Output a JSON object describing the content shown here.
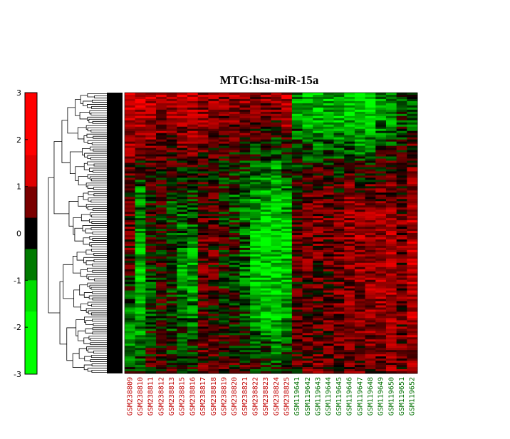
{
  "chart_data": {
    "type": "heatmap",
    "title": "MTG:hsa-miR-15a",
    "colorbar": {
      "range": [
        -3,
        3
      ],
      "ticks": [
        "3",
        "2",
        "1",
        "0",
        "-1",
        "-2",
        "-3"
      ],
      "colors": [
        "#ff0000",
        "#ff0000",
        "#e00000",
        "#7a0000",
        "#000000",
        "#007a00",
        "#00dd00",
        "#00ff00",
        "#00ff00"
      ]
    },
    "samples": [
      {
        "label": "GSM238809",
        "group": "red"
      },
      {
        "label": "GSM238810",
        "group": "red"
      },
      {
        "label": "GSM238811",
        "group": "red"
      },
      {
        "label": "GSM238812",
        "group": "red"
      },
      {
        "label": "GSM238813",
        "group": "red"
      },
      {
        "label": "GSM238815",
        "group": "red"
      },
      {
        "label": "GSM238816",
        "group": "red"
      },
      {
        "label": "GSM238817",
        "group": "red"
      },
      {
        "label": "GSM238818",
        "group": "red"
      },
      {
        "label": "GSM238819",
        "group": "red"
      },
      {
        "label": "GSM238820",
        "group": "red"
      },
      {
        "label": "GSM238821",
        "group": "red"
      },
      {
        "label": "GSM238822",
        "group": "red"
      },
      {
        "label": "GSM238823",
        "group": "red"
      },
      {
        "label": "GSM238824",
        "group": "red"
      },
      {
        "label": "GSM238825",
        "group": "red"
      },
      {
        "label": "GSM119641",
        "group": "green"
      },
      {
        "label": "GSM119642",
        "group": "green"
      },
      {
        "label": "GSM119643",
        "group": "green"
      },
      {
        "label": "GSM119644",
        "group": "green"
      },
      {
        "label": "GSM119645",
        "group": "green"
      },
      {
        "label": "GSM119646",
        "group": "green"
      },
      {
        "label": "GSM119647",
        "group": "green"
      },
      {
        "label": "GSM119648",
        "group": "green"
      },
      {
        "label": "GSM119649",
        "group": "green"
      },
      {
        "label": "GSM119650",
        "group": "green"
      },
      {
        "label": "GSM119651",
        "group": "green"
      },
      {
        "label": "GSM119652",
        "group": "green"
      }
    ],
    "label_colors": {
      "red": "#c00000",
      "green": "#007000"
    },
    "column_profiles": [
      [
        2.2,
        2.0,
        1.5,
        0.8,
        0.5,
        1.0,
        0.8,
        0.2,
        -0.8,
        -1.3,
        -1.5,
        -0.5
      ],
      [
        2.2,
        2.0,
        1.0,
        0.2,
        -1.5,
        -1.2,
        -1.6,
        -2.0,
        -1.5,
        -1.6,
        -1.0,
        -0.5
      ],
      [
        2.0,
        1.8,
        1.2,
        0.5,
        0.0,
        0.3,
        0.2,
        -0.2,
        -0.5,
        -0.3,
        0.2,
        0.4
      ],
      [
        1.8,
        1.5,
        1.0,
        0.3,
        0.5,
        0.2,
        0.2,
        0.0,
        0.3,
        0.0,
        0.4,
        0.5
      ],
      [
        1.8,
        1.5,
        0.8,
        0.0,
        -0.5,
        -0.3,
        -0.5,
        -0.8,
        -0.4,
        -0.6,
        -0.1,
        0.3
      ],
      [
        2.0,
        1.7,
        1.0,
        0.2,
        -0.5,
        -1.0,
        -1.2,
        -1.5,
        -1.2,
        -0.8,
        -0.3,
        0.0
      ],
      [
        1.8,
        1.5,
        1.2,
        0.4,
        -0.3,
        -0.5,
        -1.5,
        -1.8,
        -1.5,
        -1.0,
        -0.5,
        0.0
      ],
      [
        1.5,
        1.5,
        1.0,
        0.5,
        0.5,
        0.8,
        1.0,
        0.8,
        0.5,
        0.5,
        0.8,
        0.8
      ],
      [
        1.5,
        1.5,
        0.8,
        0.5,
        0.5,
        1.0,
        0.8,
        0.6,
        0.3,
        0.5,
        0.8,
        0.6
      ],
      [
        1.5,
        1.2,
        0.5,
        0.0,
        -0.3,
        0.0,
        0.2,
        0.0,
        -0.2,
        0.2,
        0.5,
        0.5
      ],
      [
        1.5,
        1.2,
        0.5,
        -0.2,
        -0.8,
        -0.3,
        0.0,
        -0.3,
        -0.2,
        0.0,
        0.3,
        0.6
      ],
      [
        1.5,
        1.0,
        0.3,
        -0.5,
        -1.0,
        -1.0,
        -0.8,
        -1.2,
        -0.8,
        -0.5,
        0.0,
        0.5
      ],
      [
        1.5,
        1.0,
        0.0,
        -0.8,
        -1.5,
        -2.0,
        -2.2,
        -2.2,
        -2.0,
        -1.5,
        -0.5,
        0.2
      ],
      [
        1.5,
        0.8,
        -0.3,
        -1.0,
        -1.8,
        -2.2,
        -2.3,
        -2.3,
        -2.2,
        -1.8,
        -0.8,
        0.0
      ],
      [
        1.5,
        0.8,
        -0.5,
        -1.5,
        -2.0,
        -2.3,
        -2.3,
        -2.3,
        -2.2,
        -2.0,
        -1.0,
        -0.3
      ],
      [
        2.0,
        1.8,
        0.5,
        -0.5,
        -1.5,
        -2.0,
        -2.0,
        -2.0,
        -1.8,
        -1.5,
        -0.8,
        0.0
      ],
      [
        -1.5,
        -1.5,
        -0.5,
        0.0,
        0.5,
        0.8,
        0.8,
        0.5,
        0.5,
        0.5,
        0.5,
        0.5
      ],
      [
        -2.0,
        -2.0,
        -0.8,
        0.0,
        0.8,
        1.0,
        1.0,
        0.8,
        0.5,
        0.8,
        0.8,
        0.8
      ],
      [
        -2.0,
        -2.0,
        -1.0,
        0.5,
        1.0,
        1.2,
        1.0,
        0.8,
        0.8,
        0.8,
        1.0,
        1.0
      ],
      [
        -2.0,
        -1.8,
        -1.0,
        0.5,
        1.0,
        1.0,
        1.0,
        0.8,
        0.6,
        0.8,
        0.8,
        0.8
      ],
      [
        -2.0,
        -2.0,
        -1.0,
        0.0,
        0.5,
        1.0,
        1.2,
        1.0,
        1.0,
        1.0,
        1.0,
        0.8
      ],
      [
        -2.2,
        -2.0,
        -1.0,
        0.5,
        1.2,
        1.5,
        1.5,
        1.2,
        1.2,
        1.2,
        1.0,
        1.0
      ],
      [
        -2.3,
        -2.2,
        -1.5,
        0.0,
        1.0,
        1.5,
        1.5,
        1.5,
        1.2,
        1.2,
        1.0,
        1.0
      ],
      [
        -2.0,
        -2.0,
        -1.2,
        0.3,
        1.0,
        1.5,
        1.8,
        1.5,
        1.5,
        1.5,
        1.2,
        1.0
      ],
      [
        -1.5,
        -1.5,
        -0.5,
        0.5,
        1.0,
        1.5,
        1.8,
        1.8,
        1.5,
        1.5,
        1.2,
        1.0
      ],
      [
        -1.5,
        -1.5,
        -0.3,
        0.5,
        1.2,
        1.8,
        2.0,
        2.0,
        1.8,
        1.5,
        1.5,
        1.2
      ],
      [
        -0.5,
        -0.5,
        0.0,
        0.5,
        0.8,
        1.0,
        1.2,
        1.0,
        1.0,
        1.0,
        0.8,
        0.8
      ],
      [
        -1.0,
        -1.0,
        0.5,
        1.0,
        1.5,
        2.0,
        2.0,
        2.0,
        2.0,
        1.8,
        1.5,
        1.5
      ]
    ]
  }
}
